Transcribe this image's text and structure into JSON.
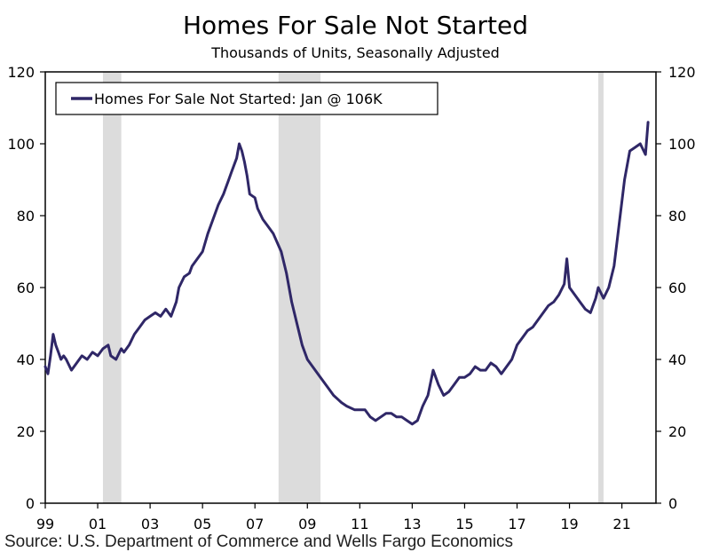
{
  "header": {
    "title": "Homes For Sale Not Started",
    "subtitle": "Thousands of Units, Seasonally Adjusted"
  },
  "footer": {
    "source": "Source: U.S. Department of Commerce and Wells Fargo Economics"
  },
  "chart_data": {
    "type": "line",
    "title": "Homes For Sale Not Started",
    "subtitle": "Thousands of Units, Seasonally Adjusted",
    "xlabel": "",
    "ylabel": "",
    "ylim": [
      0,
      120
    ],
    "xlim": [
      1999.0,
      2022.3
    ],
    "y_ticks": [
      0,
      20,
      40,
      60,
      80,
      100,
      120
    ],
    "x_ticks": [
      {
        "value": 1999,
        "label": "99"
      },
      {
        "value": 2001,
        "label": "01"
      },
      {
        "value": 2003,
        "label": "03"
      },
      {
        "value": 2005,
        "label": "05"
      },
      {
        "value": 2007,
        "label": "07"
      },
      {
        "value": 2009,
        "label": "09"
      },
      {
        "value": 2011,
        "label": "11"
      },
      {
        "value": 2013,
        "label": "13"
      },
      {
        "value": 2015,
        "label": "15"
      },
      {
        "value": 2017,
        "label": "17"
      },
      {
        "value": 2019,
        "label": "19"
      },
      {
        "value": 2021,
        "label": "21"
      }
    ],
    "grid": false,
    "dual_y_axis": true,
    "legend_position": "top-left",
    "recessions": [
      {
        "start": 2001.2,
        "end": 2001.9
      },
      {
        "start": 2007.9,
        "end": 2009.5
      },
      {
        "start": 2020.1,
        "end": 2020.3
      }
    ],
    "colors": {
      "line": "#2f2767",
      "recession": "#dcdcdc"
    },
    "series": [
      {
        "name": "Homes For Sale Not Started: Jan @ 106K",
        "x": [
          1999.0,
          1999.1,
          1999.2,
          1999.3,
          1999.4,
          1999.5,
          1999.6,
          1999.7,
          1999.8,
          2000.0,
          2000.2,
          2000.4,
          2000.6,
          2000.8,
          2001.0,
          2001.2,
          2001.4,
          2001.5,
          2001.7,
          2001.9,
          2002.0,
          2002.2,
          2002.4,
          2002.6,
          2002.8,
          2003.0,
          2003.2,
          2003.4,
          2003.6,
          2003.8,
          2004.0,
          2004.1,
          2004.3,
          2004.5,
          2004.6,
          2004.8,
          2005.0,
          2005.2,
          2005.4,
          2005.6,
          2005.8,
          2006.0,
          2006.1,
          2006.3,
          2006.4,
          2006.5,
          2006.6,
          2006.7,
          2006.8,
          2007.0,
          2007.1,
          2007.3,
          2007.5,
          2007.7,
          2008.0,
          2008.2,
          2008.4,
          2008.6,
          2008.8,
          2009.0,
          2009.2,
          2009.5,
          2009.8,
          2010.0,
          2010.3,
          2010.5,
          2010.8,
          2011.0,
          2011.2,
          2011.4,
          2011.6,
          2011.8,
          2012.0,
          2012.2,
          2012.4,
          2012.6,
          2012.8,
          2013.0,
          2013.2,
          2013.4,
          2013.6,
          2013.8,
          2014.0,
          2014.2,
          2014.4,
          2014.6,
          2014.8,
          2015.0,
          2015.2,
          2015.4,
          2015.6,
          2015.8,
          2016.0,
          2016.2,
          2016.4,
          2016.6,
          2016.8,
          2017.0,
          2017.2,
          2017.4,
          2017.6,
          2017.8,
          2018.0,
          2018.2,
          2018.4,
          2018.6,
          2018.8,
          2018.9,
          2019.0,
          2019.2,
          2019.4,
          2019.6,
          2019.8,
          2020.0,
          2020.1,
          2020.3,
          2020.5,
          2020.7,
          2020.9,
          2021.1,
          2021.3,
          2021.5,
          2021.7,
          2021.9,
          2022.0
        ],
        "values": [
          38,
          36,
          41,
          47,
          44,
          42,
          40,
          41,
          40,
          37,
          39,
          41,
          40,
          42,
          41,
          43,
          44,
          41,
          40,
          43,
          42,
          44,
          47,
          49,
          51,
          52,
          53,
          52,
          54,
          52,
          56,
          60,
          63,
          64,
          66,
          68,
          70,
          75,
          79,
          83,
          86,
          90,
          92,
          96,
          100,
          98,
          95,
          91,
          86,
          85,
          82,
          79,
          77,
          75,
          70,
          64,
          56,
          50,
          44,
          40,
          38,
          35,
          32,
          30,
          28,
          27,
          26,
          26,
          26,
          24,
          23,
          24,
          25,
          25,
          24,
          24,
          23,
          22,
          23,
          27,
          30,
          37,
          33,
          30,
          31,
          33,
          35,
          35,
          36,
          38,
          37,
          37,
          39,
          38,
          36,
          38,
          40,
          44,
          46,
          48,
          49,
          51,
          53,
          55,
          56,
          58,
          61,
          68,
          60,
          58,
          56,
          54,
          53,
          57,
          60,
          57,
          60,
          66,
          78,
          90,
          98,
          99,
          100,
          97,
          106
        ]
      }
    ]
  }
}
